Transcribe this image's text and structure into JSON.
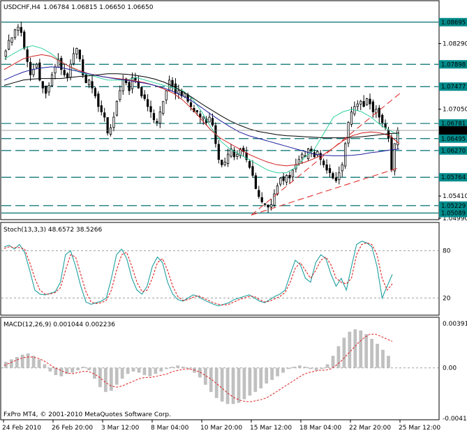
{
  "header": {
    "symbol": "USDCHF,H4",
    "ohlc": "1.06784 1.06815 1.06650 1.06650"
  },
  "footer": {
    "copyright": "FxPro MT4, © 2001-2010 MetaQuotes Software Corp."
  },
  "colors": {
    "frame": "#000000",
    "candle_up": "#ffffff",
    "candle_down": "#000000",
    "level_line": "#006e6e",
    "level_tag_bg": "#008b8b",
    "current_tag_bg": "#000000",
    "trend_line": "#e03030",
    "ma_fast": "#30d0a0",
    "ma_mid": "#d02020",
    "ma_slow_blue": "#2020a0",
    "ma_slow_black": "#000000",
    "stoch_main": "#20a0a0",
    "stoch_signal": "#e02020",
    "macd_hist": "#c0c0c0",
    "macd_signal": "#e02020"
  },
  "chart_data": [
    {
      "type": "candlestick",
      "panel": "price",
      "title": "USDCHF,H4",
      "ylim": [
        1.0499,
        1.0885
      ],
      "price_axis_labels": [
        "1.08290",
        "1.07050",
        "1.05410",
        "1.04990"
      ],
      "x_tick_labels": [
        "24 Feb 2010",
        "26 Feb 20:00",
        "3 Mar 12:00",
        "8 Mar 04:00",
        "10 Mar 20:00",
        "15 Mar 12:00",
        "18 Mar 04:00",
        "22 Mar 20:00",
        "25 Mar 12:00"
      ],
      "horizontal_levels": [
        {
          "label": "1.08695",
          "value": 1.08695,
          "style": "solid"
        },
        {
          "label": "1.07898",
          "value": 1.07898,
          "style": "dashed"
        },
        {
          "label": "1.07477",
          "value": 1.07477,
          "style": "dashed"
        },
        {
          "label": "1.06781",
          "value": 1.06781,
          "style": "dashed"
        },
        {
          "label": "1.06495",
          "value": 1.06495,
          "style": "dashed"
        },
        {
          "label": "1.06270",
          "value": 1.0627,
          "style": "dashed"
        },
        {
          "label": "1.05764",
          "value": 1.05764,
          "style": "dashed"
        },
        {
          "label": "1.05229",
          "value": 1.05229,
          "style": "dashed"
        },
        {
          "label": "1.05089",
          "value": 1.05089,
          "style": "solid"
        }
      ],
      "current_price": {
        "label": "1.06650",
        "value": 1.0665
      },
      "close_series": [
        1.0815,
        1.0835,
        1.084,
        1.0855,
        1.086,
        1.085,
        1.082,
        1.0795,
        1.077,
        1.078,
        1.079,
        1.076,
        1.0745,
        1.0735,
        1.075,
        1.077,
        1.0785,
        1.08,
        1.078,
        1.077,
        1.0765,
        1.079,
        1.081,
        1.082,
        1.08,
        1.077,
        1.0755,
        1.076,
        1.0745,
        1.073,
        1.071,
        1.07,
        1.069,
        1.066,
        1.067,
        1.069,
        1.072,
        1.074,
        1.076,
        1.0755,
        1.074,
        1.0765,
        1.076,
        1.0745,
        1.073,
        1.0725,
        1.071,
        1.07,
        1.0685,
        1.068,
        1.07,
        1.072,
        1.074,
        1.076,
        1.075,
        1.0735,
        1.074,
        1.073,
        1.0735,
        1.072,
        1.071,
        1.07,
        1.07,
        1.069,
        1.069,
        1.068,
        1.069,
        1.0675,
        1.064,
        1.061,
        1.06,
        1.0605,
        1.062,
        1.063,
        1.0615,
        1.062,
        1.063,
        1.0625,
        1.061,
        1.0595,
        1.058,
        1.0555,
        1.054,
        1.053,
        1.0525,
        1.052,
        1.0525,
        1.0545,
        1.056,
        1.0575,
        1.057,
        1.058,
        1.0575,
        1.059,
        1.06,
        1.061,
        1.062,
        1.0615,
        1.063,
        1.0625,
        1.0615,
        1.0625,
        1.061,
        1.06,
        1.059,
        1.0585,
        1.0575,
        1.057,
        1.0585,
        1.06,
        1.064,
        1.068,
        1.07,
        1.071,
        1.0715,
        1.072,
        1.071,
        1.0725,
        1.0715,
        1.07,
        1.0705,
        1.069,
        1.068,
        1.067,
        1.065,
        1.059,
        1.064,
        1.0665
      ],
      "moving_averages": [
        {
          "color_key": "ma_fast",
          "values": [
            1.08,
            1.081,
            1.082,
            1.0825,
            1.082,
            1.081,
            1.0795,
            1.0785,
            1.0775,
            1.077,
            1.0765,
            1.076,
            1.076,
            1.076,
            1.0765,
            1.076,
            1.0755,
            1.075,
            1.0745,
            1.074,
            1.0725,
            1.07,
            1.067,
            1.0645,
            1.063,
            1.062,
            1.061,
            1.06,
            1.059,
            1.0585,
            1.0585,
            1.0595,
            1.0615,
            1.063,
            1.066,
            1.069,
            1.07,
            1.0705,
            1.07,
            1.069,
            1.0675,
            1.0665,
            1.0655
          ]
        },
        {
          "color_key": "ma_mid",
          "values": [
            1.078,
            1.079,
            1.08,
            1.0805,
            1.0808,
            1.0805,
            1.0795,
            1.0785,
            1.0778,
            1.0772,
            1.0768,
            1.0765,
            1.0763,
            1.0761,
            1.0758,
            1.0755,
            1.075,
            1.0743,
            1.0735,
            1.0722,
            1.0705,
            1.0685,
            1.0665,
            1.065,
            1.064,
            1.063,
            1.062,
            1.0612,
            1.0605,
            1.06,
            1.0598,
            1.06,
            1.0605,
            1.0612,
            1.062,
            1.0632,
            1.0645,
            1.0655,
            1.066,
            1.0662,
            1.066,
            1.0655,
            1.064
          ]
        },
        {
          "color_key": "ma_slow_blue",
          "values": [
            1.076,
            1.0768,
            1.0775,
            1.078,
            1.0783,
            1.0785,
            1.0784,
            1.078,
            1.0776,
            1.0772,
            1.0768,
            1.0765,
            1.0762,
            1.076,
            1.0757,
            1.0754,
            1.075,
            1.0745,
            1.0738,
            1.073,
            1.072,
            1.0708,
            1.0695,
            1.0683,
            1.0672,
            1.0662,
            1.0655,
            1.065,
            1.0645,
            1.064,
            1.0635,
            1.063,
            1.0625,
            1.062,
            1.0618,
            1.0617,
            1.0617,
            1.0618,
            1.062,
            1.0623,
            1.0625,
            1.0628,
            1.063
          ]
        },
        {
          "color_key": "ma_slow_black",
          "values": [
            1.075,
            1.0755,
            1.076,
            1.0762,
            1.0763,
            1.0763,
            1.0763,
            1.0765,
            1.0767,
            1.0768,
            1.077,
            1.0772,
            1.0772,
            1.0771,
            1.0769,
            1.0766,
            1.0762,
            1.0756,
            1.0748,
            1.0738,
            1.0727,
            1.0715,
            1.0704,
            1.0693,
            1.0683,
            1.0675,
            1.0668,
            1.0663,
            1.066,
            1.0657,
            1.0655,
            1.0654,
            1.0653,
            1.0652,
            1.0651,
            1.0651,
            1.0651,
            1.0652,
            1.0653,
            1.0655,
            1.0657,
            1.0659,
            1.066
          ]
        }
      ],
      "trend_lines": [
        {
          "from": [
            "15 Mar 12:00",
            1.0505
          ],
          "to": [
            "25 Mar 12:00",
            1.0735
          ]
        },
        {
          "from": [
            "15 Mar 12:00",
            1.0505
          ],
          "to": [
            "25 Mar 12:00",
            1.0595
          ]
        }
      ]
    },
    {
      "type": "line",
      "panel": "stochastic",
      "title": "Stoch(13,3,3) 48.6572 38.5266",
      "ylim": [
        0,
        100
      ],
      "levels": [
        80,
        20
      ],
      "level_labels": [
        "80",
        "20"
      ],
      "series": [
        {
          "color_key": "stoch_main",
          "values": [
            85,
            87,
            82,
            88,
            78,
            55,
            30,
            25,
            24,
            26,
            28,
            40,
            75,
            80,
            60,
            35,
            15,
            12,
            14,
            16,
            20,
            45,
            75,
            82,
            70,
            45,
            30,
            25,
            35,
            60,
            72,
            65,
            40,
            25,
            18,
            16,
            20,
            24,
            22,
            18,
            15,
            12,
            10,
            12,
            14,
            18,
            20,
            22,
            24,
            20,
            16,
            14,
            18,
            22,
            25,
            30,
            50,
            68,
            62,
            45,
            40,
            65,
            75,
            70,
            50,
            35,
            45,
            30,
            60,
            88,
            92,
            90,
            85,
            60,
            20,
            35,
            50
          ]
        },
        {
          "color_key": "stoch_signal",
          "values": [
            83,
            85,
            84,
            84,
            82,
            65,
            45,
            30,
            25,
            25,
            27,
            33,
            55,
            75,
            72,
            50,
            28,
            15,
            13,
            14,
            17,
            30,
            55,
            75,
            78,
            60,
            40,
            28,
            30,
            45,
            65,
            70,
            55,
            35,
            22,
            17,
            18,
            21,
            23,
            20,
            17,
            14,
            12,
            11,
            12,
            15,
            18,
            20,
            22,
            22,
            18,
            15,
            16,
            19,
            22,
            27,
            40,
            58,
            65,
            55,
            45,
            55,
            68,
            72,
            62,
            45,
            40,
            38,
            45,
            75,
            88,
            90,
            88,
            75,
            45,
            30,
            38
          ]
        }
      ]
    },
    {
      "type": "bar",
      "panel": "macd",
      "title": "MACD(12,26,9) 0.001044 0.002236",
      "ylim": [
        -0.00419,
        0.00391
      ],
      "axis_labels": [
        "0.00391",
        "0.00",
        "-0.00419"
      ],
      "histogram": [
        0.0005,
        0.0007,
        0.0009,
        0.0011,
        0.0012,
        0.001,
        0.0007,
        0.0003,
        -0.0003,
        -0.0006,
        -0.0007,
        -0.0005,
        -0.0004,
        -0.0002,
        0.0001,
        -0.0002,
        -0.0009,
        -0.0016,
        -0.002,
        -0.0019,
        -0.0014,
        -0.0009,
        -0.0005,
        -0.0003,
        -0.0004,
        -0.0006,
        -0.0007,
        -0.0005,
        -0.0003,
        -0.0001,
        0.0001,
        0.0002,
        0.0001,
        -0.0001,
        -0.0004,
        -0.0008,
        -0.0014,
        -0.002,
        -0.0025,
        -0.0028,
        -0.003,
        -0.003,
        -0.0029,
        -0.0026,
        -0.0023,
        -0.002,
        -0.0017,
        -0.0013,
        -0.001,
        -0.0007,
        -0.0004,
        -0.0001,
        0.0001,
        0.0002,
        0.0001,
        -0.0001,
        -0.0002,
        -0.0001,
        0.0003,
        0.001,
        0.0018,
        0.0025,
        0.003,
        0.0032,
        0.0031,
        0.0028,
        0.0024,
        0.002,
        0.0015,
        0.001
      ],
      "signal_line": [
        0.0002,
        0.0004,
        0.0006,
        0.0008,
        0.0009,
        0.0009,
        0.0008,
        0.0006,
        0.0003,
        0.0,
        -0.0002,
        -0.0004,
        -0.0005,
        -0.0004,
        -0.0003,
        -0.0003,
        -0.0005,
        -0.0008,
        -0.0012,
        -0.0015,
        -0.0016,
        -0.0015,
        -0.0013,
        -0.0011,
        -0.0009,
        -0.0008,
        -0.0008,
        -0.0007,
        -0.0006,
        -0.0005,
        -0.0003,
        -0.0002,
        -0.0001,
        -0.0001,
        -0.0002,
        -0.0004,
        -0.0007,
        -0.001,
        -0.0014,
        -0.0018,
        -0.0022,
        -0.0025,
        -0.0027,
        -0.0028,
        -0.0028,
        -0.0027,
        -0.0026,
        -0.0024,
        -0.0021,
        -0.0018,
        -0.0015,
        -0.0012,
        -0.0009,
        -0.0006,
        -0.0004,
        -0.0003,
        -0.0002,
        -0.0002,
        -0.0001,
        0.0002,
        0.0006,
        0.0011,
        0.0016,
        0.0021,
        0.0025,
        0.0028,
        0.0028,
        0.0026,
        0.0024,
        0.0022
      ]
    }
  ]
}
